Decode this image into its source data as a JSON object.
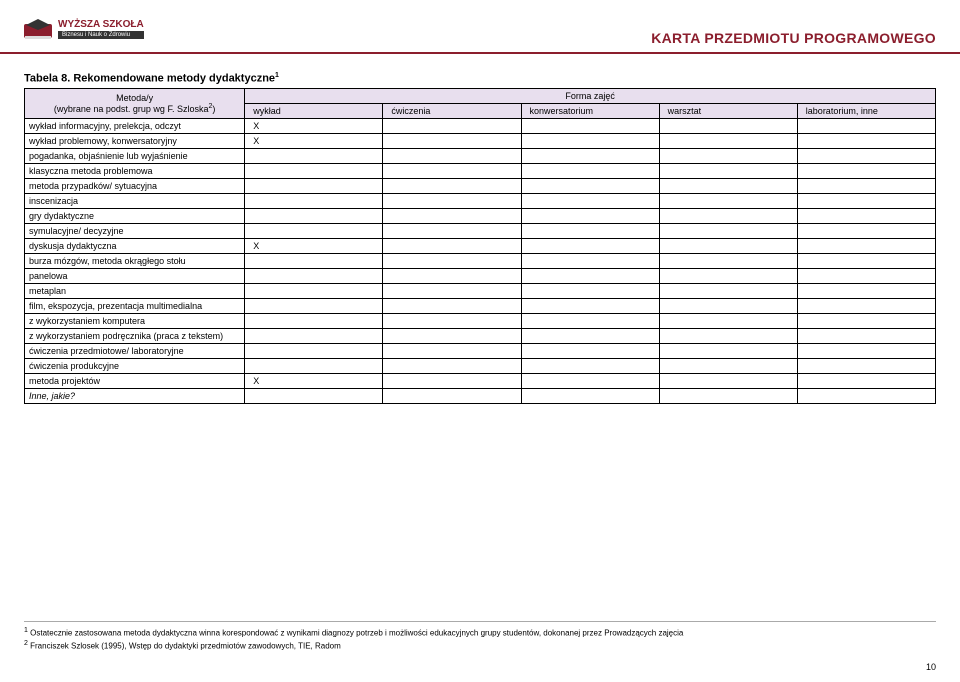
{
  "logo": {
    "top_line": "WYŻSZA SZKOŁA",
    "bottom_line": "Biznesu i Nauk o Zdrowiu"
  },
  "header_title": "KARTA PRZEDMIOTU PROGRAMOWEGO",
  "table_title_prefix": "Tabela 8. Rekomendowane metody dydaktyczne",
  "table_title_sup": "1",
  "table": {
    "header_left_line1": "Metoda/y",
    "header_left_line2_prefix": "(wybrane na podst. grup wg F. Szloska",
    "header_left_line2_sup": "2",
    "header_left_line2_suffix": ")",
    "header_right": "Forma zajęć",
    "columns": [
      "wykład",
      "ćwiczenia",
      "konwersatorium",
      "warsztat",
      "laboratorium, inne"
    ],
    "rows": [
      {
        "label": "wykład informacyjny, prelekcja, odczyt",
        "marks": [
          "X",
          "",
          "",
          "",
          ""
        ],
        "italic": false
      },
      {
        "label": "wykład problemowy, konwersatoryjny",
        "marks": [
          "X",
          "",
          "",
          "",
          ""
        ],
        "italic": false
      },
      {
        "label": "pogadanka, objaśnienie lub wyjaśnienie",
        "marks": [
          "",
          "",
          "",
          "",
          ""
        ],
        "italic": false
      },
      {
        "label": "klasyczna metoda problemowa",
        "marks": [
          "",
          "",
          "",
          "",
          ""
        ],
        "italic": false
      },
      {
        "label": "metoda przypadków/ sytuacyjna",
        "marks": [
          "",
          "",
          "",
          "",
          ""
        ],
        "italic": false
      },
      {
        "label": "inscenizacja",
        "marks": [
          "",
          "",
          "",
          "",
          ""
        ],
        "italic": false
      },
      {
        "label": "gry dydaktyczne",
        "marks": [
          "",
          "",
          "",
          "",
          ""
        ],
        "italic": false
      },
      {
        "label": "symulacyjne/ decyzyjne",
        "marks": [
          "",
          "",
          "",
          "",
          ""
        ],
        "italic": false
      },
      {
        "label": "dyskusja dydaktyczna",
        "marks": [
          "X",
          "",
          "",
          "",
          ""
        ],
        "italic": false
      },
      {
        "label": "burza mózgów, metoda okrągłego stołu",
        "marks": [
          "",
          "",
          "",
          "",
          ""
        ],
        "italic": false
      },
      {
        "label": "panelowa",
        "marks": [
          "",
          "",
          "",
          "",
          ""
        ],
        "italic": false
      },
      {
        "label": "metaplan",
        "marks": [
          "",
          "",
          "",
          "",
          ""
        ],
        "italic": false
      },
      {
        "label": "film, ekspozycja, prezentacja multimedialna",
        "marks": [
          "",
          "",
          "",
          "",
          ""
        ],
        "italic": false
      },
      {
        "label": "z wykorzystaniem komputera",
        "marks": [
          "",
          "",
          "",
          "",
          ""
        ],
        "italic": false
      },
      {
        "label": "z wykorzystaniem podręcznika (praca z tekstem)",
        "marks": [
          "",
          "",
          "",
          "",
          ""
        ],
        "italic": false
      },
      {
        "label": "ćwiczenia przedmiotowe/ laboratoryjne",
        "marks": [
          "",
          "",
          "",
          "",
          ""
        ],
        "italic": false
      },
      {
        "label": "ćwiczenia produkcyjne",
        "marks": [
          "",
          "",
          "",
          "",
          ""
        ],
        "italic": false
      },
      {
        "label": "metoda projektów",
        "marks": [
          "X",
          "",
          "",
          "",
          ""
        ],
        "italic": false
      },
      {
        "label": "Inne, jakie?",
        "marks": [
          "",
          "",
          "",
          "",
          ""
        ],
        "italic": true
      }
    ]
  },
  "footnotes": {
    "fn1_sup": "1",
    "fn1_text": " Ostatecznie zastosowana metoda dydaktyczna winna korespondować z wynikami diagnozy potrzeb i możliwości edukacyjnych grupy studentów, dokonanej przez Prowadzących zajęcia",
    "fn2_sup": "2",
    "fn2_text": " Franciszek Szlosek (1995), Wstęp do dydaktyki przedmiotów zawodowych, TIE, Radom"
  },
  "page_number": "10",
  "colors": {
    "accent": "#8b1e2d",
    "header_bg": "#e8dfee",
    "text": "#000000",
    "bg": "#ffffff"
  }
}
